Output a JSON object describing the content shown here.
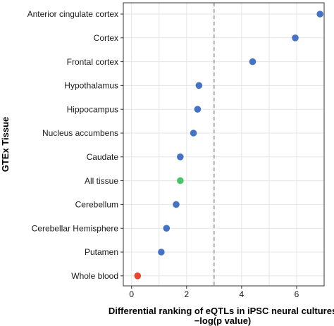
{
  "chart_data": {
    "type": "scatter",
    "title": "",
    "xlabel_line1": "Differential ranking of eQTLs in iPSC neural cultures",
    "xlabel_line2": "−log(p value)",
    "ylabel": "GTEx Tissue",
    "xlim": [
      -0.3,
      7.0
    ],
    "x_ticks": [
      0,
      2,
      4,
      6
    ],
    "threshold_line_x": 3.0,
    "threshold_line_style": "dashed",
    "grid": true,
    "categories": [
      "Anterior cingulate cortex",
      "Cortex",
      "Frontal cortex",
      "Hypothalamus",
      "Hippocampus",
      "Nucleus accumbens",
      "Caudate",
      "All tissue",
      "Cerebellum",
      "Cerebellar Hemisphere",
      "Putamen",
      "Whole blood"
    ],
    "values": [
      6.85,
      5.95,
      4.4,
      2.45,
      2.4,
      2.25,
      1.77,
      1.77,
      1.62,
      1.27,
      1.08,
      0.22
    ],
    "point_colors": [
      "#4472C4",
      "#4472C4",
      "#4472C4",
      "#4472C4",
      "#4472C4",
      "#4472C4",
      "#4472C4",
      "#4CC46A",
      "#4472C4",
      "#4472C4",
      "#4472C4",
      "#E8462A"
    ]
  }
}
